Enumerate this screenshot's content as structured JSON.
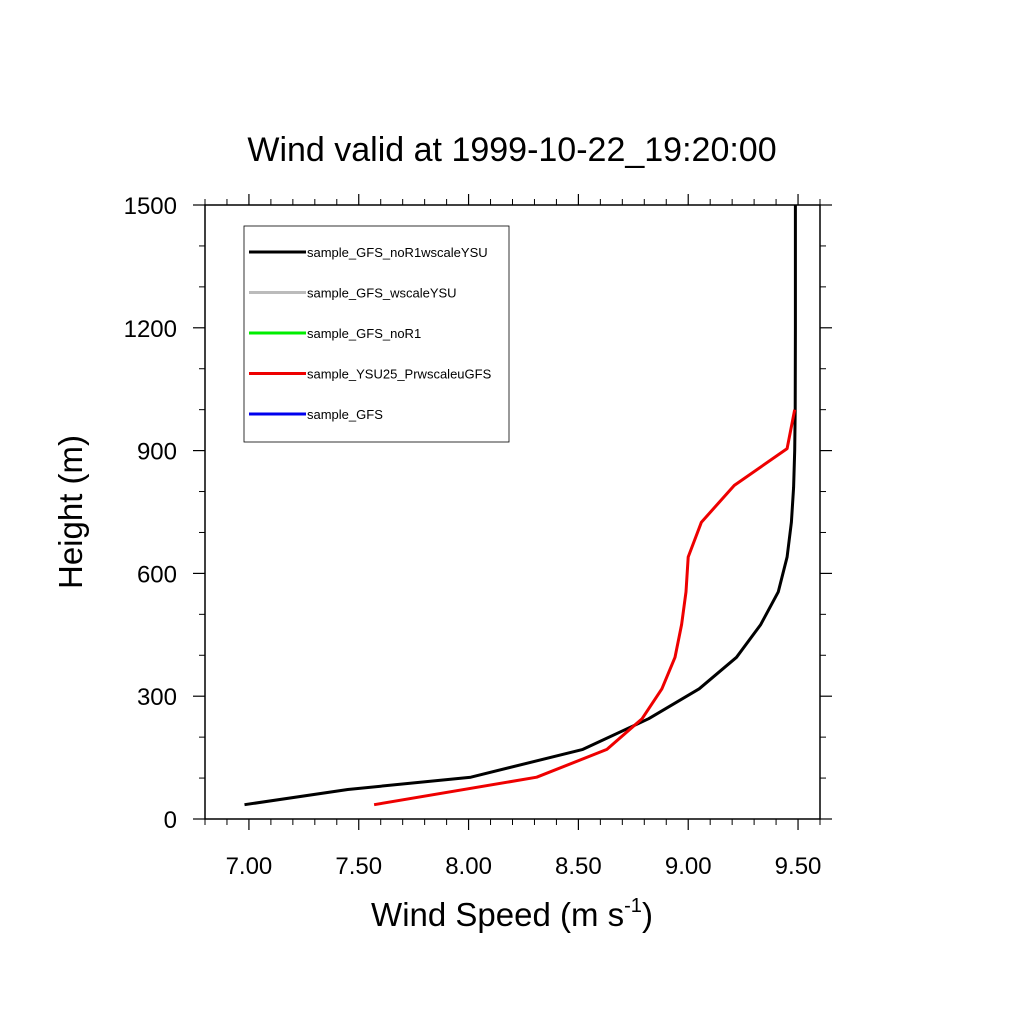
{
  "chart_data": {
    "type": "line",
    "title": "Wind valid at 1999-10-22_19:20:00",
    "xlabel": {
      "main": "Wind Speed (m s",
      "sup": "-1",
      "close": ")"
    },
    "ylabel": "Height (m)",
    "xlim": [
      6.8,
      9.6
    ],
    "ylim": [
      0,
      1500
    ],
    "xticks": [
      {
        "v": 7.0,
        "label": "7.00"
      },
      {
        "v": 7.5,
        "label": "7.50"
      },
      {
        "v": 8.0,
        "label": "8.00"
      },
      {
        "v": 8.5,
        "label": "8.50"
      },
      {
        "v": 9.0,
        "label": "9.00"
      },
      {
        "v": 9.5,
        "label": "9.50"
      }
    ],
    "yticks": [
      {
        "v": 0,
        "label": "0"
      },
      {
        "v": 300,
        "label": "300"
      },
      {
        "v": 600,
        "label": "600"
      },
      {
        "v": 900,
        "label": "900"
      },
      {
        "v": 1200,
        "label": "1200"
      },
      {
        "v": 1500,
        "label": "1500"
      }
    ],
    "x_minor_step": 0.1,
    "y_minor_step": 100,
    "legend_position": "top-left",
    "grid": false,
    "series": [
      {
        "name": "sample_GFS_noR1wscaleYSU",
        "color": "#000000",
        "points": [
          [
            6.98,
            35
          ],
          [
            7.45,
            72
          ],
          [
            8.01,
            102
          ],
          [
            8.52,
            170
          ],
          [
            8.82,
            245
          ],
          [
            9.05,
            318
          ],
          [
            9.22,
            395
          ],
          [
            9.33,
            475
          ],
          [
            9.41,
            555
          ],
          [
            9.45,
            640
          ],
          [
            9.47,
            725
          ],
          [
            9.48,
            810
          ],
          [
            9.485,
            900
          ],
          [
            9.487,
            1000
          ],
          [
            9.488,
            1200
          ],
          [
            9.488,
            1500
          ]
        ]
      },
      {
        "name": "sample_GFS_wscaleYSU",
        "color": "#bbbbbb",
        "points": []
      },
      {
        "name": "sample_GFS_noR1",
        "color": "#00ee00",
        "points": []
      },
      {
        "name": "sample_YSU25_PrwscaleuGFS",
        "color": "#ee0000",
        "points": [
          [
            7.57,
            35
          ],
          [
            8.31,
            102
          ],
          [
            8.63,
            170
          ],
          [
            8.79,
            245
          ],
          [
            8.88,
            318
          ],
          [
            8.94,
            395
          ],
          [
            8.97,
            475
          ],
          [
            8.99,
            555
          ],
          [
            9.0,
            640
          ],
          [
            9.06,
            725
          ],
          [
            9.21,
            815
          ],
          [
            9.45,
            905
          ],
          [
            9.485,
            1000
          ]
        ]
      },
      {
        "name": "sample_GFS",
        "color": "#0000ee",
        "points": []
      }
    ]
  }
}
